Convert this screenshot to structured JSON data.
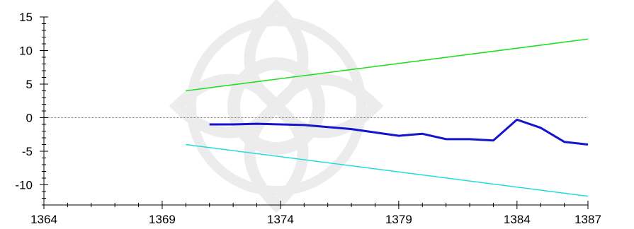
{
  "chart_data": {
    "type": "line",
    "title": "",
    "xlabel": "",
    "ylabel": "",
    "xlim": [
      1364,
      1387
    ],
    "ylim": [
      -13,
      15
    ],
    "x_ticks": [
      "1364",
      "1369",
      "1374",
      "1379",
      "1384",
      "1387"
    ],
    "x_tick_values": [
      1364,
      1369,
      1374,
      1379,
      1384,
      1387
    ],
    "y_ticks": [
      "15",
      "10",
      "5",
      "0",
      "-5",
      "-10"
    ],
    "y_tick_values": [
      15,
      10,
      5,
      0,
      -5,
      -10
    ],
    "grid": false,
    "reference_line": {
      "y": 0,
      "color": "#808080",
      "style": "dotted"
    },
    "series": [
      {
        "color": "#1515cc",
        "x": [
          1371,
          1372,
          1373,
          1374,
          1375,
          1376,
          1377,
          1378,
          1379,
          1380,
          1381,
          1382,
          1383,
          1384,
          1385,
          1386,
          1387
        ],
        "values": [
          -1.0,
          -1.0,
          -0.9,
          -1.0,
          -1.1,
          -1.4,
          -1.7,
          -2.2,
          -2.7,
          -2.4,
          -3.2,
          -3.2,
          -3.4,
          -0.3,
          -1.5,
          -3.6,
          -4.0
        ]
      },
      {
        "color": "#22dd22",
        "x": [
          1370,
          1387
        ],
        "values": [
          4.0,
          11.7
        ]
      },
      {
        "color": "#22dddd",
        "x": [
          1370,
          1387
        ],
        "values": [
          -4.0,
          -11.7
        ]
      }
    ]
  }
}
